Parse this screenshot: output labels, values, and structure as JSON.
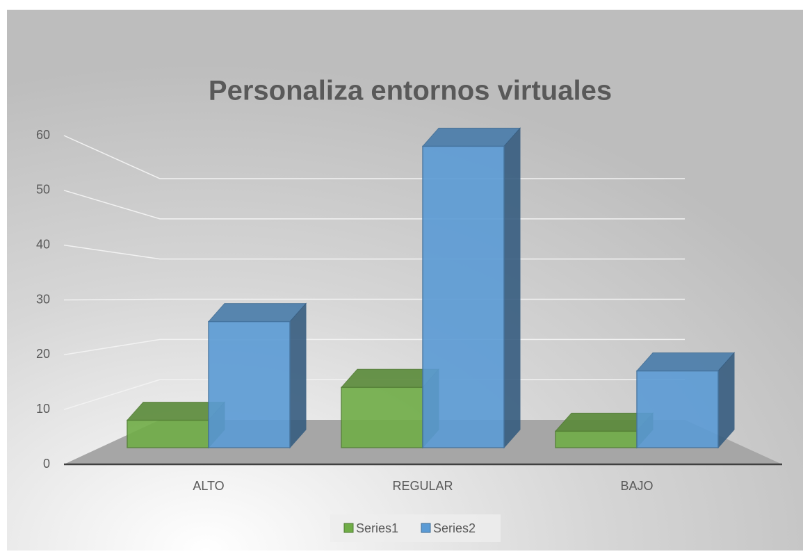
{
  "chart_data": {
    "type": "bar3d",
    "title": "Personaliza entornos virtuales",
    "categories": [
      "ALTO",
      "REGULAR",
      "BAJO"
    ],
    "series": [
      {
        "name": "Series1",
        "color": "#70ad47",
        "values": [
          5,
          11,
          3
        ]
      },
      {
        "name": "Series2",
        "color": "#5b9bd5",
        "values": [
          23,
          55,
          14
        ]
      }
    ],
    "ylim": [
      0,
      60
    ],
    "yticks": [
      0,
      10,
      20,
      30,
      40,
      50,
      60
    ],
    "grid": true,
    "legend": "bottom"
  }
}
